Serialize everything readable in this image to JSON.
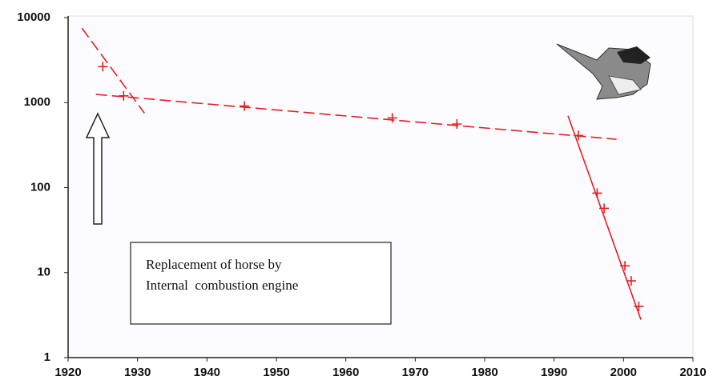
{
  "chart_data": {
    "type": "scatter",
    "log_y": true,
    "color": "#e02020",
    "x": [
      1925,
      1928,
      1945.4,
      1966.7,
      1976,
      1993.5,
      1996.2,
      1997.2,
      2000.2,
      2001.1,
      2002.2
    ],
    "values": [
      2650,
      1200,
      910,
      660,
      560,
      410,
      86,
      57,
      12,
      8,
      4
    ],
    "trend_lines": [
      {
        "x": [
          1922,
          1931
        ],
        "values": [
          7500,
          750
        ]
      },
      {
        "x": [
          1924,
          1999
        ],
        "values": [
          1250,
          370
        ]
      },
      {
        "x": [
          1992,
          2002.5
        ],
        "values": [
          700,
          2.8
        ]
      }
    ],
    "annotation": [
      "Replacement of horse by",
      "Internal  combustion engine"
    ],
    "xlim": [
      1920,
      2010
    ],
    "xticks": [
      1920,
      1930,
      1940,
      1950,
      1960,
      1970,
      1980,
      1990,
      2000,
      2010
    ],
    "ylim": [
      1,
      10000
    ],
    "yticks": [
      1,
      10,
      100,
      1000,
      10000
    ]
  }
}
